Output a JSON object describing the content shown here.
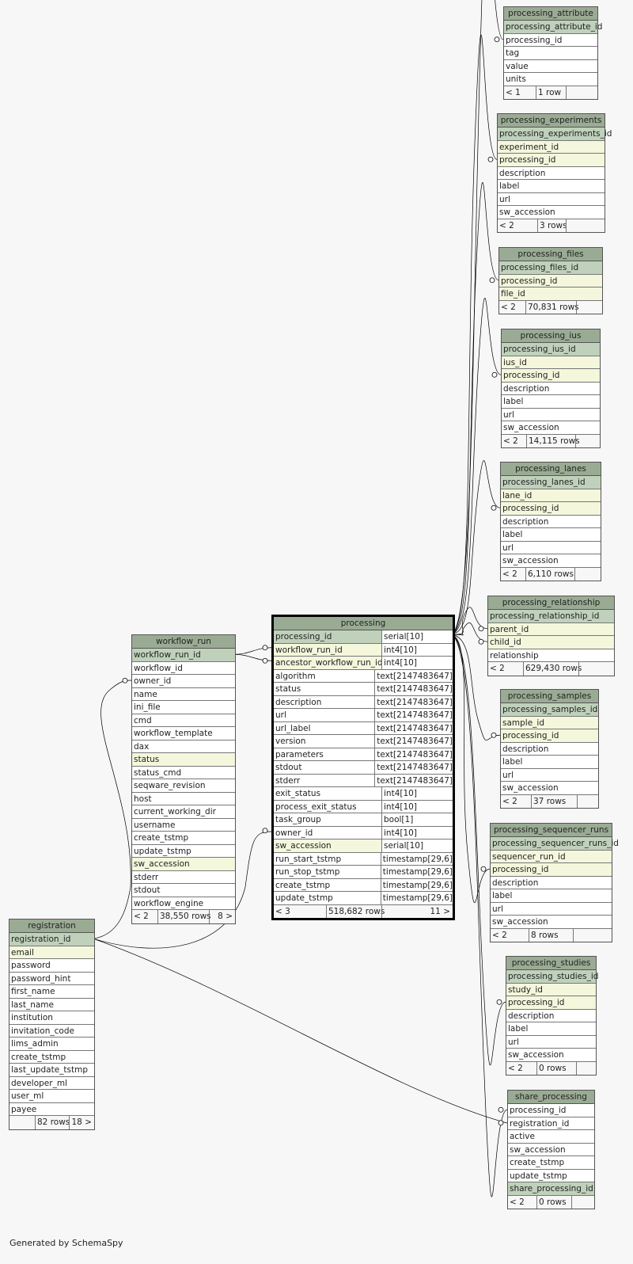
{
  "credit": "Generated by SchemaSpy",
  "colors": {
    "header": "#9aab94",
    "primary_key": "#bfd1bb",
    "foreign_key": "#f4f7dc"
  },
  "tables": [
    {
      "id": "processing_attribute",
      "name": "processing_attribute",
      "rows": [
        {
          "c": "processing_attribute_id",
          "k": "pk"
        },
        {
          "c": "processing_id"
        },
        {
          "c": "tag"
        },
        {
          "c": "value"
        },
        {
          "c": "units"
        }
      ],
      "footer": [
        "< 1",
        "1 row",
        ""
      ]
    },
    {
      "id": "processing_experiments",
      "name": "processing_experiments",
      "rows": [
        {
          "c": "processing_experiments_id",
          "k": "pk"
        },
        {
          "c": "experiment_id",
          "k": "fk"
        },
        {
          "c": "processing_id",
          "k": "fk"
        },
        {
          "c": "description"
        },
        {
          "c": "label"
        },
        {
          "c": "url"
        },
        {
          "c": "sw_accession"
        }
      ],
      "footer": [
        "< 2",
        "3 rows",
        ""
      ]
    },
    {
      "id": "processing_files",
      "name": "processing_files",
      "rows": [
        {
          "c": "processing_files_id",
          "k": "pk"
        },
        {
          "c": "processing_id",
          "k": "fk"
        },
        {
          "c": "file_id",
          "k": "fk"
        }
      ],
      "footer": [
        "< 2",
        "70,831 rows",
        ""
      ]
    },
    {
      "id": "processing_ius",
      "name": "processing_ius",
      "rows": [
        {
          "c": "processing_ius_id",
          "k": "pk"
        },
        {
          "c": "ius_id",
          "k": "fk"
        },
        {
          "c": "processing_id",
          "k": "fk"
        },
        {
          "c": "description"
        },
        {
          "c": "label"
        },
        {
          "c": "url"
        },
        {
          "c": "sw_accession"
        }
      ],
      "footer": [
        "< 2",
        "14,115 rows",
        ""
      ]
    },
    {
      "id": "processing_lanes",
      "name": "processing_lanes",
      "rows": [
        {
          "c": "processing_lanes_id",
          "k": "pk"
        },
        {
          "c": "lane_id",
          "k": "fk"
        },
        {
          "c": "processing_id",
          "k": "fk"
        },
        {
          "c": "description"
        },
        {
          "c": "label"
        },
        {
          "c": "url"
        },
        {
          "c": "sw_accession"
        }
      ],
      "footer": [
        "< 2",
        "6,110 rows",
        ""
      ]
    },
    {
      "id": "processing_relationship",
      "name": "processing_relationship",
      "rows": [
        {
          "c": "processing_relationship_id",
          "k": "pk"
        },
        {
          "c": "parent_id",
          "k": "fk"
        },
        {
          "c": "child_id",
          "k": "fk"
        },
        {
          "c": "relationship"
        }
      ],
      "footer": [
        "< 2",
        "629,430 rows",
        ""
      ]
    },
    {
      "id": "processing_samples",
      "name": "processing_samples",
      "rows": [
        {
          "c": "processing_samples_id",
          "k": "pk"
        },
        {
          "c": "sample_id",
          "k": "fk"
        },
        {
          "c": "processing_id",
          "k": "fk"
        },
        {
          "c": "description"
        },
        {
          "c": "label"
        },
        {
          "c": "url"
        },
        {
          "c": "sw_accession"
        }
      ],
      "footer": [
        "< 2",
        "37 rows",
        ""
      ]
    },
    {
      "id": "processing_sequencer_runs",
      "name": "processing_sequencer_runs",
      "rows": [
        {
          "c": "processing_sequencer_runs_id",
          "k": "pk"
        },
        {
          "c": "sequencer_run_id",
          "k": "fk"
        },
        {
          "c": "processing_id",
          "k": "fk"
        },
        {
          "c": "description"
        },
        {
          "c": "label"
        },
        {
          "c": "url"
        },
        {
          "c": "sw_accession"
        }
      ],
      "footer": [
        "< 2",
        "8 rows",
        ""
      ]
    },
    {
      "id": "processing_studies",
      "name": "processing_studies",
      "rows": [
        {
          "c": "processing_studies_id",
          "k": "pk"
        },
        {
          "c": "study_id",
          "k": "fk"
        },
        {
          "c": "processing_id",
          "k": "fk"
        },
        {
          "c": "description"
        },
        {
          "c": "label"
        },
        {
          "c": "url"
        },
        {
          "c": "sw_accession"
        }
      ],
      "footer": [
        "< 2",
        "0 rows",
        ""
      ]
    },
    {
      "id": "share_processing",
      "name": "share_processing",
      "rows": [
        {
          "c": "processing_id"
        },
        {
          "c": "registration_id"
        },
        {
          "c": "active"
        },
        {
          "c": "sw_accession"
        },
        {
          "c": "create_tstmp"
        },
        {
          "c": "update_tstmp"
        },
        {
          "c": "share_processing_id",
          "k": "pk"
        }
      ],
      "footer": [
        "< 2",
        "0 rows",
        ""
      ]
    },
    {
      "id": "processing",
      "name": "processing",
      "rows": [
        {
          "c": "processing_id",
          "t": "serial[10]",
          "k": "pk"
        },
        {
          "c": "workflow_run_id",
          "t": "int4[10]",
          "k": "fk"
        },
        {
          "c": "ancestor_workflow_run_id",
          "t": "int4[10]",
          "k": "fk"
        },
        {
          "c": "algorithm",
          "t": "text[2147483647]"
        },
        {
          "c": "status",
          "t": "text[2147483647]"
        },
        {
          "c": "description",
          "t": "text[2147483647]"
        },
        {
          "c": "url",
          "t": "text[2147483647]"
        },
        {
          "c": "url_label",
          "t": "text[2147483647]"
        },
        {
          "c": "version",
          "t": "text[2147483647]"
        },
        {
          "c": "parameters",
          "t": "text[2147483647]"
        },
        {
          "c": "stdout",
          "t": "text[2147483647]"
        },
        {
          "c": "stderr",
          "t": "text[2147483647]"
        },
        {
          "c": "exit_status",
          "t": "int4[10]"
        },
        {
          "c": "process_exit_status",
          "t": "int4[10]"
        },
        {
          "c": "task_group",
          "t": "bool[1]"
        },
        {
          "c": "owner_id",
          "t": "int4[10]"
        },
        {
          "c": "sw_accession",
          "t": "serial[10]",
          "k": "fk"
        },
        {
          "c": "run_start_tstmp",
          "t": "timestamp[29,6]"
        },
        {
          "c": "run_stop_tstmp",
          "t": "timestamp[29,6]"
        },
        {
          "c": "create_tstmp",
          "t": "timestamp[29,6]"
        },
        {
          "c": "update_tstmp",
          "t": "timestamp[29,6]"
        }
      ],
      "footer": [
        "< 3",
        "518,682 rows",
        "11 >"
      ]
    },
    {
      "id": "workflow_run",
      "name": "workflow_run",
      "rows": [
        {
          "c": "workflow_run_id",
          "k": "pk"
        },
        {
          "c": "workflow_id"
        },
        {
          "c": "owner_id"
        },
        {
          "c": "name"
        },
        {
          "c": "ini_file"
        },
        {
          "c": "cmd"
        },
        {
          "c": "workflow_template"
        },
        {
          "c": "dax"
        },
        {
          "c": "status",
          "k": "fk"
        },
        {
          "c": "status_cmd"
        },
        {
          "c": "seqware_revision"
        },
        {
          "c": "host"
        },
        {
          "c": "current_working_dir"
        },
        {
          "c": "username"
        },
        {
          "c": "create_tstmp"
        },
        {
          "c": "update_tstmp"
        },
        {
          "c": "sw_accession",
          "k": "fk"
        },
        {
          "c": "stderr"
        },
        {
          "c": "stdout"
        },
        {
          "c": "workflow_engine"
        }
      ],
      "footer": [
        "< 2",
        "38,550 rows",
        "8 >"
      ]
    },
    {
      "id": "registration",
      "name": "registration",
      "rows": [
        {
          "c": "registration_id",
          "k": "pk"
        },
        {
          "c": "email",
          "k": "fk"
        },
        {
          "c": "password"
        },
        {
          "c": "password_hint"
        },
        {
          "c": "first_name"
        },
        {
          "c": "last_name"
        },
        {
          "c": "institution"
        },
        {
          "c": "invitation_code"
        },
        {
          "c": "lims_admin"
        },
        {
          "c": "create_tstmp"
        },
        {
          "c": "last_update_tstmp"
        },
        {
          "c": "developer_ml"
        },
        {
          "c": "user_ml"
        },
        {
          "c": "payee"
        }
      ],
      "footer": [
        "",
        "82 rows",
        "18 >"
      ]
    }
  ]
}
